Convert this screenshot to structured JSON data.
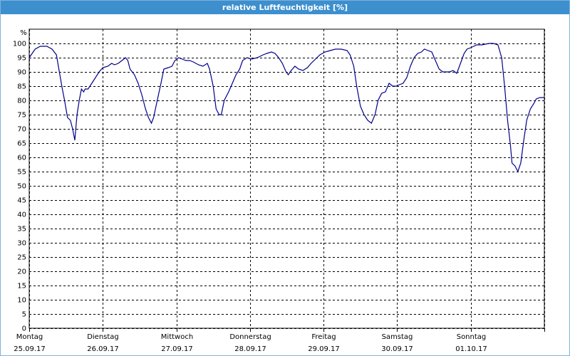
{
  "chart_data": {
    "type": "line",
    "title": "relative Luftfeuchtigkeit [%]",
    "ylabel": "%",
    "xlim": [
      0,
      7
    ],
    "ylim": [
      0,
      100
    ],
    "xticks": [
      {
        "value": 0,
        "label": [
          "Montag",
          "25.09.17"
        ]
      },
      {
        "value": 1,
        "label": [
          "Dienstag",
          "26.09.17"
        ]
      },
      {
        "value": 2,
        "label": [
          "Mittwoch",
          "27.09.17"
        ]
      },
      {
        "value": 3,
        "label": [
          "Donnerstag",
          "28.09.17"
        ]
      },
      {
        "value": 4,
        "label": [
          "Freitag",
          "29.09.17"
        ]
      },
      {
        "value": 5,
        "label": [
          "Samstag",
          "30.09.17"
        ]
      },
      {
        "value": 6,
        "label": [
          "Sonntag",
          "01.10.17"
        ]
      },
      7
    ],
    "yticks": [
      0,
      5,
      10,
      15,
      20,
      25,
      30,
      35,
      40,
      45,
      50,
      55,
      60,
      65,
      70,
      75,
      80,
      85,
      90,
      95,
      100
    ],
    "grid": true,
    "series": [
      {
        "color": "#00008b",
        "x": [
          0,
          0.08,
          0.15,
          0.24,
          0.31,
          0.37,
          0.41,
          0.45,
          0.48,
          0.52,
          0.56,
          0.59,
          0.62,
          0.65,
          0.68,
          0.71,
          0.74,
          0.76,
          0.8,
          0.85,
          0.9,
          0.95,
          1.0,
          1.07,
          1.12,
          1.16,
          1.21,
          1.26,
          1.31,
          1.34,
          1.37,
          1.43,
          1.48,
          1.53,
          1.58,
          1.62,
          1.66,
          1.69,
          1.74,
          1.79,
          1.83,
          1.89,
          1.94,
          1.98,
          2.03,
          2.08,
          2.13,
          2.18,
          2.23,
          2.3,
          2.36,
          2.42,
          2.45,
          2.5,
          2.54,
          2.58,
          2.61,
          2.65,
          2.71,
          2.76,
          2.81,
          2.86,
          2.9,
          2.96,
          3.02,
          3.1,
          3.18,
          3.23,
          3.29,
          3.34,
          3.39,
          3.44,
          3.49,
          3.52,
          3.56,
          3.61,
          3.66,
          3.72,
          3.78,
          3.83,
          3.89,
          3.95,
          4.02,
          4.09,
          4.16,
          4.24,
          4.32,
          4.36,
          4.41,
          4.45,
          4.5,
          4.55,
          4.6,
          4.65,
          4.7,
          4.74,
          4.79,
          4.84,
          4.89,
          4.94,
          4.99,
          5.03,
          5.08,
          5.13,
          5.18,
          5.23,
          5.28,
          5.33,
          5.37,
          5.42,
          5.47,
          5.52,
          5.57,
          5.62,
          5.66,
          5.71,
          5.76,
          5.81,
          5.86,
          5.91,
          5.95,
          6.0,
          6.08,
          6.15,
          6.25,
          6.31,
          6.37,
          6.42,
          6.46,
          6.5,
          6.54,
          6.56,
          6.6,
          6.64,
          6.68,
          6.72,
          6.76,
          6.81,
          6.86,
          6.89,
          6.94,
          7.0
        ],
        "values": [
          95,
          98,
          99,
          99,
          98,
          96,
          90,
          84,
          80,
          74,
          73,
          70,
          66,
          75,
          80,
          84,
          83,
          84,
          84,
          86,
          88,
          90,
          91.5,
          92,
          93,
          92.5,
          93,
          94,
          95,
          94,
          91,
          89,
          86,
          82,
          77,
          74,
          72,
          74,
          80,
          86,
          91,
          91.5,
          92,
          94,
          95,
          94.5,
          94,
          94,
          93.5,
          92.5,
          92,
          93,
          91,
          85,
          77,
          75,
          75,
          80,
          83,
          86,
          89,
          91,
          94,
          95,
          94.5,
          95,
          96,
          96.5,
          97,
          96.5,
          95,
          93,
          90,
          89,
          90.5,
          92,
          91,
          90.5,
          91.5,
          93,
          94.5,
          96,
          97,
          97.5,
          98,
          98,
          97.5,
          96,
          92,
          85,
          78,
          75,
          73,
          72,
          75,
          80,
          82.5,
          83,
          86,
          85,
          85,
          85.5,
          86,
          88,
          92,
          95,
          96.5,
          97,
          98,
          97.5,
          97,
          94,
          91,
          90,
          90,
          90,
          90.5,
          89.5,
          93,
          96.5,
          98,
          98.5,
          99.5,
          99.5,
          100,
          100,
          99.5,
          95,
          85,
          73,
          64,
          58,
          57,
          55,
          58,
          66,
          73,
          77,
          79,
          80.5,
          81,
          81
        ]
      }
    ]
  }
}
